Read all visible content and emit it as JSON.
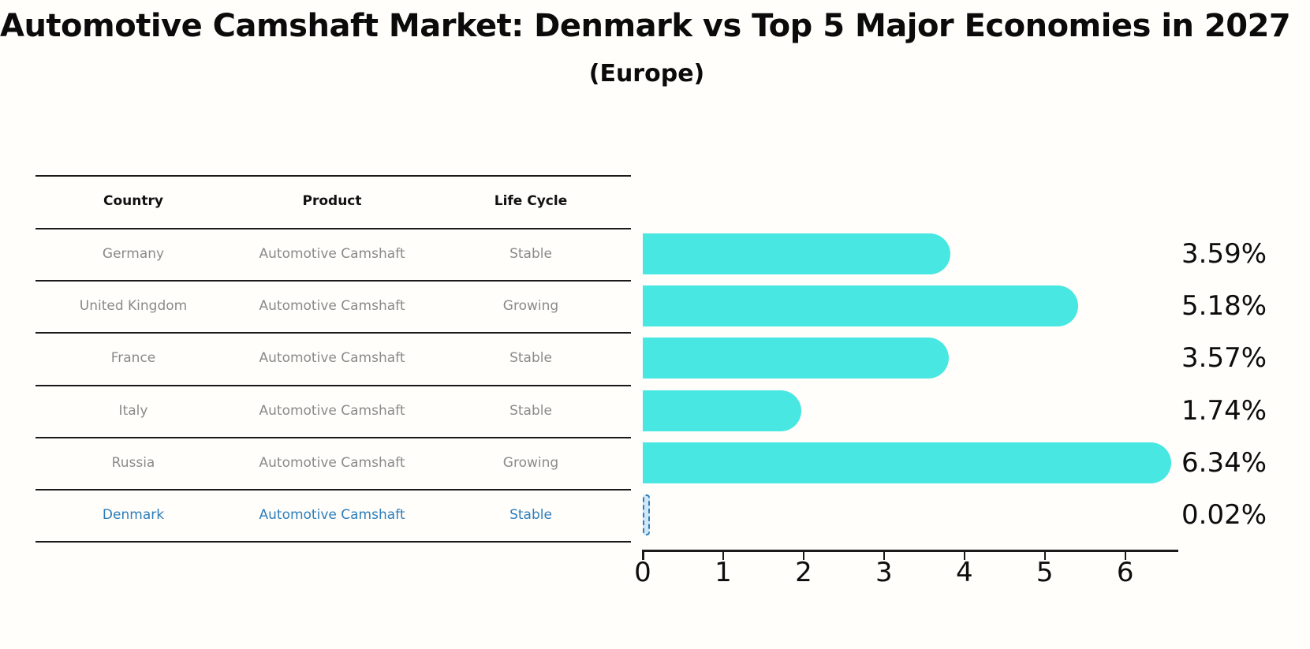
{
  "header": {
    "title": "Automotive Camshaft Market: Denmark vs Top 5 Major Economies in 2027",
    "subtitle": "(Europe)"
  },
  "table": {
    "headers": [
      "Country",
      "Product",
      "Life Cycle"
    ],
    "rows": [
      {
        "country": "Germany",
        "product": "Automotive Camshaft",
        "life_cycle": "Stable",
        "highlighted": false
      },
      {
        "country": "United Kingdom",
        "product": "Automotive Camshaft",
        "life_cycle": "Growing",
        "highlighted": false
      },
      {
        "country": "France",
        "product": "Automotive Camshaft",
        "life_cycle": "Stable",
        "highlighted": false
      },
      {
        "country": "Italy",
        "product": "Automotive Camshaft",
        "life_cycle": "Stable",
        "highlighted": false
      },
      {
        "country": "Russia",
        "product": "Automotive Camshaft",
        "life_cycle": "Growing",
        "highlighted": false
      },
      {
        "country": "Denmark",
        "product": "Automotive Camshaft",
        "life_cycle": "Stable",
        "highlighted": true
      }
    ]
  },
  "chart_data": {
    "type": "bar",
    "orientation": "horizontal",
    "title": "Automotive Camshaft Market: Denmark vs Top 5 Major Economies in 2027",
    "subtitle": "(Europe)",
    "categories": [
      "Germany",
      "United Kingdom",
      "France",
      "Italy",
      "Russia",
      "Denmark"
    ],
    "values": [
      3.59,
      5.18,
      3.57,
      1.74,
      6.34,
      0.02
    ],
    "value_labels": [
      "3.59%",
      "5.18%",
      "3.57%",
      "1.74%",
      "6.34%",
      "0.02%"
    ],
    "xlabel": "",
    "ylabel": "",
    "xlim": [
      0,
      6.66
    ],
    "xticks": [
      0,
      1,
      2,
      3,
      4,
      5,
      6
    ],
    "grid": false,
    "legend": "none",
    "bar_color": "#48e7e2",
    "highlight_index": 5,
    "highlight_fill": "#cfe8f8",
    "highlight_border": "#2e7ebb"
  },
  "colors": {
    "bar_cyan": "#48e7e2",
    "accent_blue": "#2e7ebb",
    "table_text_gray": "#8a8a8a",
    "line_black": "#1a1a1a"
  }
}
